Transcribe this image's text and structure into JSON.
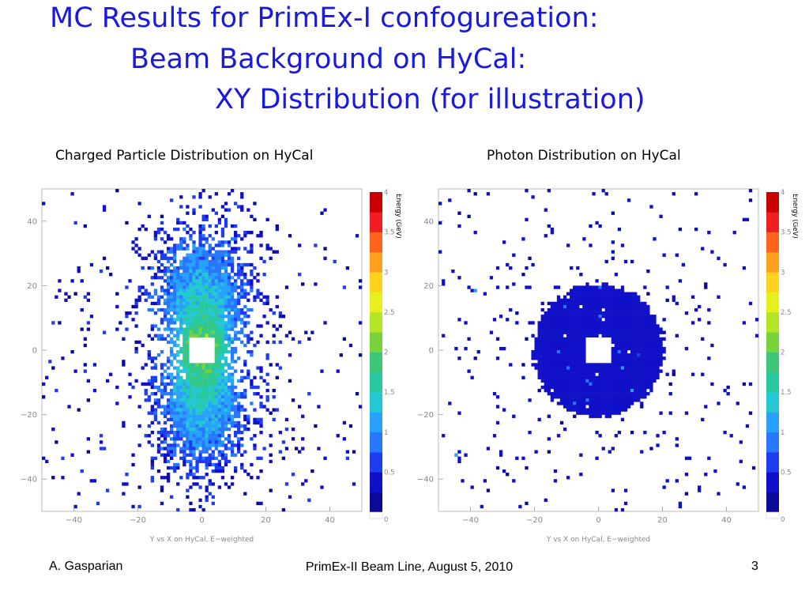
{
  "slide": {
    "title_lines": [
      "MC Results for PrimEx-I confogureation:",
      "Beam Background on HyCal:",
      "XY Distribution (for illustration)"
    ],
    "footer": {
      "author": "A. Gasparian",
      "center": "PrimEx-II Beam Line, August 5, 2010",
      "page": "3"
    }
  },
  "colors": {
    "title": "#1a1adc",
    "palette": [
      "#ffffff",
      "#0a0a96",
      "#1010c8",
      "#1e3cf0",
      "#2878ff",
      "#28a0ff",
      "#23c8d2",
      "#28c8a0",
      "#3cc878",
      "#78d23c",
      "#b4e628",
      "#e6f01e",
      "#ffd21e",
      "#ffa01e",
      "#ff641e",
      "#f01e1e",
      "#c80000"
    ]
  },
  "chart_data": [
    {
      "type": "heatmap",
      "subtitle": "Charged Particle Distribution on HyCal",
      "xlabel": "Y vs X on HyCal, E−weighted",
      "colorbar_label": "Energy (GeV)",
      "xlim": [
        -50,
        50
      ],
      "ylim": [
        -50,
        50
      ],
      "xticks": [
        "−40",
        "−20",
        "0",
        "20",
        "40"
      ],
      "xtick_values": [
        -40,
        -20,
        0,
        20,
        40
      ],
      "yticks": [
        "40",
        "20",
        "0",
        "−20",
        "−40"
      ],
      "ytick_values": [
        40,
        20,
        0,
        -20,
        -40
      ],
      "zlim": [
        0,
        4
      ],
      "colorbar_ticks": [
        "4",
        "3.5",
        "3",
        "2.5",
        "2",
        "1.5",
        "1",
        "0.5",
        "0"
      ],
      "colorbar_tick_values": [
        4,
        3.5,
        3,
        2.5,
        2,
        1.5,
        1,
        0.5,
        0
      ],
      "bins": 100,
      "hole_half_width": 4,
      "distribution": "two vertical lobes centered at y=±17 with energy peaking near center (~2.2 GeV), sparse hits elsewhere"
    },
    {
      "type": "heatmap",
      "subtitle": "Photon Distribution on HyCal",
      "xlabel": "Y vs X on HyCal, E−weighted",
      "colorbar_label": "Energy (GeV)",
      "xlim": [
        -50,
        50
      ],
      "ylim": [
        -50,
        50
      ],
      "xticks": [
        "−40",
        "−20",
        "0",
        "20",
        "40"
      ],
      "xtick_values": [
        -40,
        -20,
        0,
        20,
        40
      ],
      "yticks": [
        "40",
        "20",
        "0",
        "−20",
        "−40"
      ],
      "ytick_values": [
        40,
        20,
        0,
        -20,
        -40
      ],
      "zlim": [
        0,
        4
      ],
      "colorbar_ticks": [
        "4",
        "3.5",
        "3",
        "2.5",
        "2",
        "1.5",
        "1",
        "0.5",
        "0"
      ],
      "colorbar_tick_values": [
        4,
        3.5,
        3,
        2.5,
        2,
        1.5,
        1,
        0.5,
        0
      ],
      "bins": 100,
      "hole_half_width": 4,
      "distribution": "dense circular disk of radius ~20 with low energy (~0.3 GeV), sparse scattered hits outside"
    }
  ]
}
